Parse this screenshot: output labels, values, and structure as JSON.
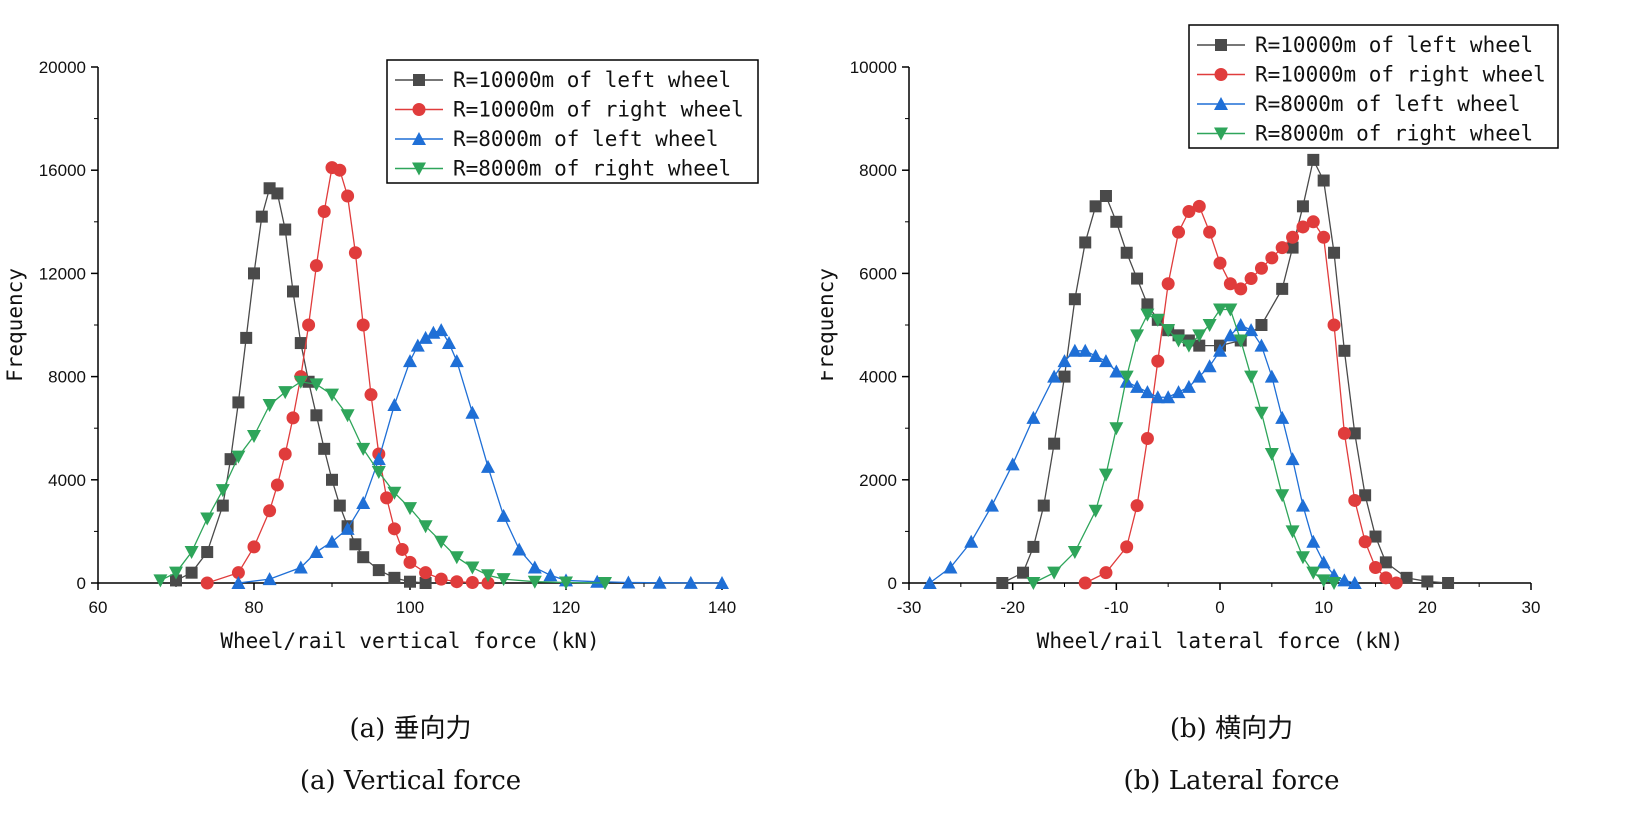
{
  "chart_data": [
    {
      "type": "line",
      "xlabel": "Wheel/rail vertical force (kN)",
      "ylabel": "Frequency",
      "xlim": [
        60,
        140
      ],
      "ylim": [
        0,
        20000
      ],
      "xticks": [
        60,
        80,
        100,
        120,
        140
      ],
      "yticks": [
        0,
        4000,
        8000,
        12000,
        16000,
        20000
      ],
      "grid": false,
      "legend_position": "top-right",
      "caption_cn": "(a) 垂向力",
      "caption_en": "(a) Vertical force",
      "series": [
        {
          "name": "R=10000m of left wheel",
          "color": "#4a4a4a",
          "marker": "square",
          "x": [
            70,
            72,
            74,
            76,
            77,
            78,
            79,
            80,
            81,
            82,
            83,
            84,
            85,
            86,
            87,
            88,
            89,
            90,
            91,
            92,
            93,
            94,
            96,
            98,
            100,
            102
          ],
          "y": [
            100,
            400,
            1200,
            3000,
            4800,
            7000,
            9500,
            12000,
            14200,
            15300,
            15100,
            13700,
            11300,
            9300,
            7800,
            6500,
            5200,
            4000,
            3000,
            2200,
            1500,
            1000,
            500,
            200,
            50,
            0
          ]
        },
        {
          "name": "R=10000m of right wheel",
          "color": "#e03c3c",
          "marker": "circle",
          "x": [
            74,
            78,
            80,
            82,
            83,
            84,
            85,
            86,
            87,
            88,
            89,
            90,
            91,
            92,
            93,
            94,
            95,
            96,
            97,
            98,
            99,
            100,
            102,
            104,
            106,
            108,
            110
          ],
          "y": [
            0,
            400,
            1400,
            2800,
            3800,
            5000,
            6400,
            8000,
            10000,
            12300,
            14400,
            16100,
            16000,
            15000,
            12800,
            10000,
            7300,
            5000,
            3300,
            2100,
            1300,
            800,
            400,
            150,
            50,
            20,
            0
          ]
        },
        {
          "name": "R=8000m of left wheel",
          "color": "#1f6fd6",
          "marker": "triangle-up",
          "x": [
            78,
            82,
            86,
            88,
            90,
            92,
            94,
            96,
            98,
            100,
            101,
            102,
            103,
            104,
            105,
            106,
            108,
            110,
            112,
            114,
            116,
            118,
            120,
            124,
            128,
            132,
            136,
            140
          ],
          "y": [
            0,
            150,
            600,
            1200,
            1600,
            2100,
            3100,
            4800,
            6900,
            8600,
            9200,
            9500,
            9700,
            9800,
            9300,
            8600,
            6600,
            4500,
            2600,
            1300,
            600,
            300,
            100,
            50,
            20,
            10,
            5,
            0
          ]
        },
        {
          "name": "R=8000m of right wheel",
          "color": "#2ea55a",
          "marker": "triangle-down",
          "x": [
            68,
            70,
            72,
            74,
            76,
            78,
            80,
            82,
            84,
            86,
            88,
            90,
            92,
            94,
            96,
            98,
            100,
            102,
            104,
            106,
            108,
            110,
            112,
            116,
            120,
            125
          ],
          "y": [
            100,
            400,
            1200,
            2500,
            3600,
            4900,
            5700,
            6900,
            7400,
            7800,
            7700,
            7300,
            6500,
            5200,
            4300,
            3500,
            2900,
            2200,
            1600,
            1000,
            600,
            300,
            150,
            50,
            20,
            0
          ]
        }
      ]
    },
    {
      "type": "line",
      "xlabel": "Wheel/rail lateral force (kN)",
      "ylabel": "Frequency",
      "xlim": [
        -30,
        30
      ],
      "ylim": [
        0,
        10000
      ],
      "xticks": [
        -30,
        -20,
        -10,
        0,
        10,
        20,
        30
      ],
      "yticks": [
        0,
        2000,
        4000,
        6000,
        8000,
        10000
      ],
      "grid": false,
      "legend_position": "top-right",
      "caption_cn": "(b) 横向力",
      "caption_en": "(b) Lateral force",
      "series": [
        {
          "name": "R=10000m of left wheel",
          "color": "#4a4a4a",
          "marker": "square",
          "x": [
            -21,
            -19,
            -18,
            -17,
            -16,
            -15,
            -14,
            -13,
            -12,
            -11,
            -10,
            -9,
            -8,
            -7,
            -6,
            -5,
            -4,
            -3,
            -2,
            0,
            2,
            4,
            6,
            7,
            8,
            9,
            10,
            11,
            12,
            13,
            14,
            15,
            16,
            18,
            20,
            22
          ],
          "y": [
            0,
            200,
            700,
            1500,
            2700,
            4000,
            5500,
            6600,
            7300,
            7500,
            7000,
            6400,
            5900,
            5400,
            5100,
            4900,
            4800,
            4700,
            4600,
            4600,
            4700,
            5000,
            5700,
            6500,
            7300,
            8200,
            7800,
            6400,
            4500,
            2900,
            1700,
            900,
            400,
            100,
            30,
            0
          ]
        },
        {
          "name": "R=10000m of right wheel",
          "color": "#e03c3c",
          "marker": "circle",
          "x": [
            -13,
            -11,
            -9,
            -8,
            -7,
            -6,
            -5,
            -4,
            -3,
            -2,
            -1,
            0,
            1,
            2,
            3,
            4,
            5,
            6,
            7,
            8,
            9,
            10,
            11,
            12,
            13,
            14,
            15,
            16,
            17
          ],
          "y": [
            0,
            200,
            700,
            1500,
            2800,
            4300,
            5800,
            6800,
            7200,
            7300,
            6800,
            6200,
            5800,
            5700,
            5900,
            6100,
            6300,
            6500,
            6700,
            6900,
            7000,
            6700,
            5000,
            2900,
            1600,
            800,
            300,
            100,
            0
          ]
        },
        {
          "name": "R=8000m of left wheel",
          "color": "#1f6fd6",
          "marker": "triangle-up",
          "x": [
            -28,
            -26,
            -24,
            -22,
            -20,
            -18,
            -16,
            -15,
            -14,
            -13,
            -12,
            -11,
            -10,
            -9,
            -8,
            -7,
            -6,
            -5,
            -4,
            -3,
            -2,
            -1,
            0,
            1,
            2,
            3,
            4,
            5,
            6,
            7,
            8,
            9,
            10,
            11,
            12,
            13
          ],
          "y": [
            0,
            300,
            800,
            1500,
            2300,
            3200,
            4000,
            4300,
            4500,
            4500,
            4400,
            4300,
            4100,
            3900,
            3800,
            3700,
            3600,
            3600,
            3700,
            3800,
            4000,
            4200,
            4500,
            4800,
            5000,
            4900,
            4600,
            4000,
            3200,
            2400,
            1500,
            800,
            400,
            150,
            50,
            0
          ]
        },
        {
          "name": "R=8000m of right wheel",
          "color": "#2ea55a",
          "marker": "triangle-down",
          "x": [
            -18,
            -16,
            -14,
            -12,
            -11,
            -10,
            -9,
            -8,
            -7,
            -6,
            -5,
            -4,
            -3,
            -2,
            -1,
            0,
            1,
            2,
            3,
            4,
            5,
            6,
            7,
            8,
            9,
            10,
            11
          ],
          "y": [
            0,
            200,
            600,
            1400,
            2100,
            3000,
            4000,
            4800,
            5200,
            5100,
            4900,
            4700,
            4600,
            4800,
            5000,
            5300,
            5300,
            4700,
            4000,
            3300,
            2500,
            1700,
            1000,
            500,
            200,
            50,
            0
          ]
        }
      ]
    }
  ]
}
